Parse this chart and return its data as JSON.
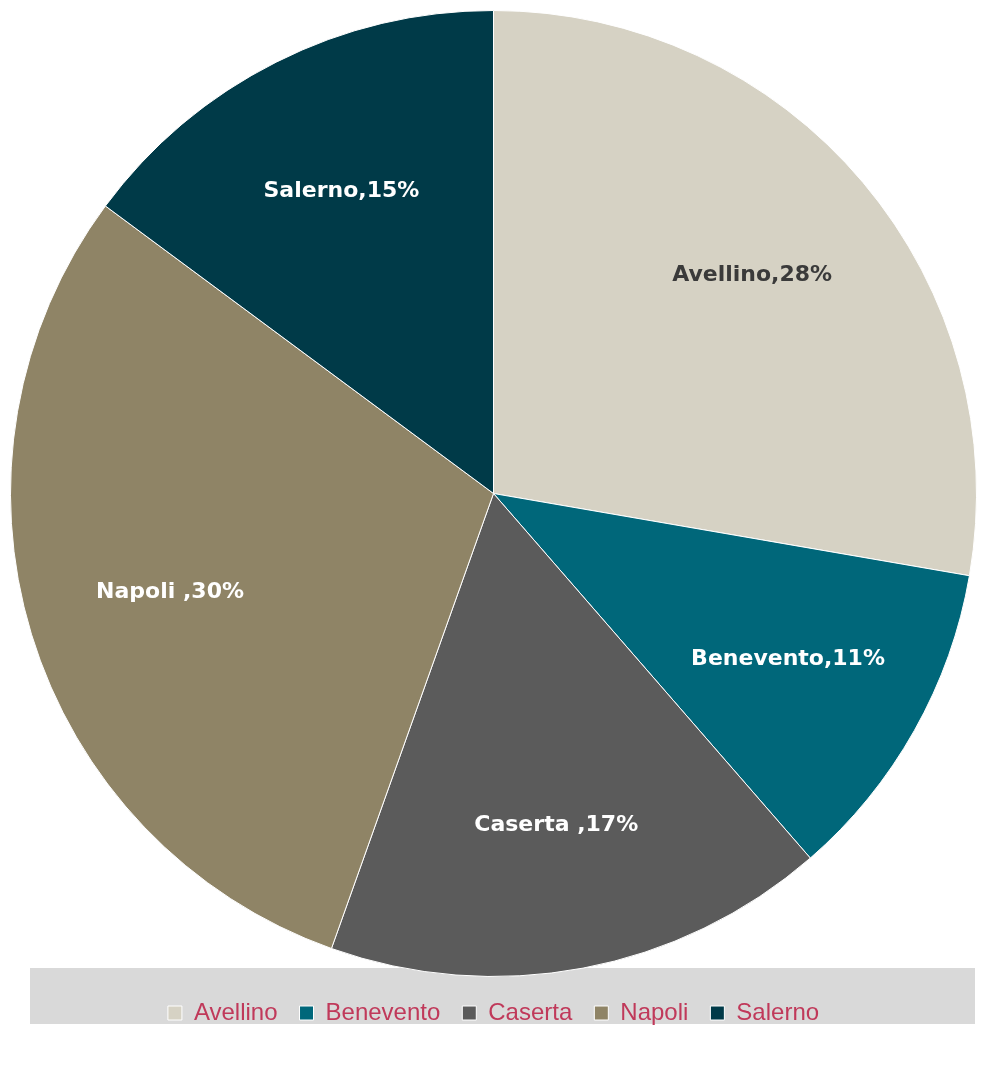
{
  "chart_data": {
    "type": "pie",
    "categories": [
      "Avellino",
      "Benevento",
      "Caserta",
      "Napoli",
      "Salerno"
    ],
    "values": [
      28,
      11,
      17,
      30,
      15
    ],
    "colors": [
      "#d6d2c4",
      "#00677a",
      "#5b5b5b",
      "#8f8466",
      "#003a48"
    ],
    "value_labels": [
      "Avellino,28%",
      "Benevento,11%",
      "Caserta ,17%",
      "Napoli ,30%",
      "Salerno,15%"
    ],
    "legend": "bottom"
  }
}
